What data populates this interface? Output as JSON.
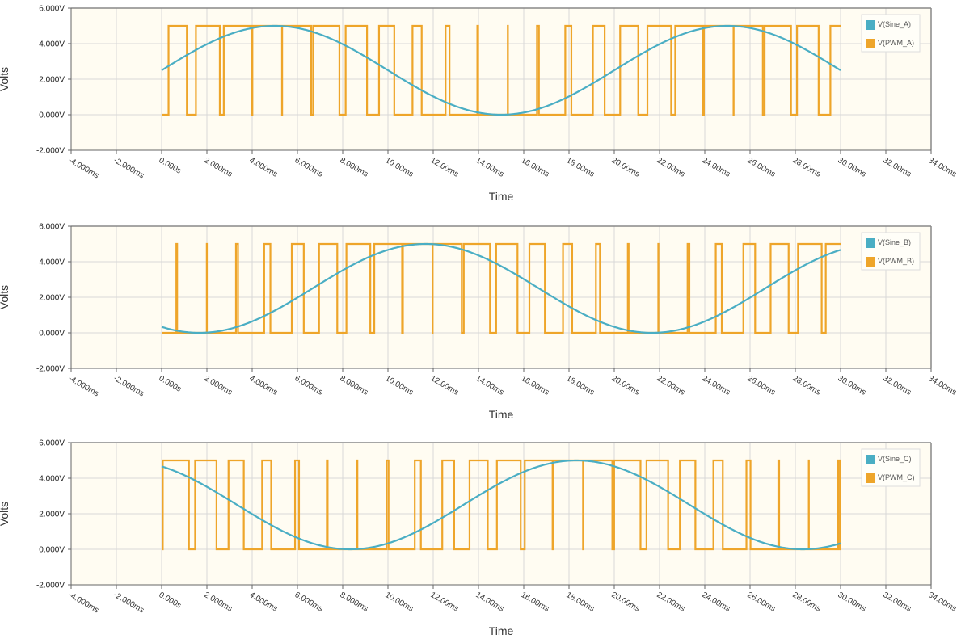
{
  "colors": {
    "sine": "#4aaec4",
    "pwm": "#eea52a",
    "plot_bg": "#fffcf2",
    "grid": "#d8d8d8",
    "axis": "#666666"
  },
  "chart_data": [
    {
      "type": "line",
      "ylabel": "Volts",
      "xlabel": "Time",
      "xlim": [
        -4,
        34
      ],
      "ylim": [
        -2,
        6
      ],
      "x_ticks": [
        "-4.000ms",
        "-2.000ms",
        "0.000s",
        "2.000ms",
        "4.000ms",
        "6.000ms",
        "8.000ms",
        "10.00ms",
        "12.00ms",
        "14.00ms",
        "16.00ms",
        "18.00ms",
        "20.00ms",
        "22.00ms",
        "24.00ms",
        "26.00ms",
        "28.00ms",
        "30.00ms",
        "32.00ms",
        "34.00ms"
      ],
      "y_ticks": [
        "6.000V",
        "4.000V",
        "2.000V",
        "0.000V",
        "-2.000V"
      ],
      "grid": true,
      "legend_position": "top-right",
      "series": [
        {
          "name": "V(Sine_A)",
          "kind": "sine",
          "x_range_ms": [
            0,
            30
          ],
          "offset": 2.5,
          "amplitude": 2.5,
          "period_ms": 20,
          "phase_deg": 0
        },
        {
          "name": "V(PWM_A)",
          "kind": "pwm",
          "x_range_ms": [
            0,
            30
          ],
          "high": 5,
          "low": 0,
          "switching_period_ms": 1.33,
          "reference": "V(Sine_A)"
        }
      ]
    },
    {
      "type": "line",
      "ylabel": "Volts",
      "xlabel": "Time",
      "xlim": [
        -4,
        34
      ],
      "ylim": [
        -2,
        6
      ],
      "x_ticks": [
        "-4.000ms",
        "-2.000ms",
        "0.000s",
        "2.000ms",
        "4.000ms",
        "6.000ms",
        "8.000ms",
        "10.00ms",
        "12.00ms",
        "14.00ms",
        "16.00ms",
        "18.00ms",
        "20.00ms",
        "22.00ms",
        "24.00ms",
        "26.00ms",
        "28.00ms",
        "30.00ms",
        "32.00ms",
        "34.00ms"
      ],
      "y_ticks": [
        "6.000V",
        "4.000V",
        "2.000V",
        "0.000V",
        "-2.000V"
      ],
      "grid": true,
      "legend_position": "top-right",
      "series": [
        {
          "name": "V(Sine_B)",
          "kind": "sine",
          "x_range_ms": [
            0,
            30
          ],
          "offset": 2.5,
          "amplitude": 2.5,
          "period_ms": 20,
          "phase_deg": -120
        },
        {
          "name": "V(PWM_B)",
          "kind": "pwm",
          "x_range_ms": [
            0,
            30
          ],
          "high": 5,
          "low": 0,
          "switching_period_ms": 1.33,
          "reference": "V(Sine_B)"
        }
      ]
    },
    {
      "type": "line",
      "ylabel": "Volts",
      "xlabel": "Time",
      "xlim": [
        -4,
        34
      ],
      "ylim": [
        -2,
        6
      ],
      "x_ticks": [
        "-4.000ms",
        "-2.000ms",
        "0.000s",
        "2.000ms",
        "4.000ms",
        "6.000ms",
        "8.000ms",
        "10.00ms",
        "12.00ms",
        "14.00ms",
        "16.00ms",
        "18.00ms",
        "20.00ms",
        "22.00ms",
        "24.00ms",
        "26.00ms",
        "28.00ms",
        "30.00ms",
        "32.00ms",
        "34.00ms"
      ],
      "y_ticks": [
        "6.000V",
        "4.000V",
        "2.000V",
        "0.000V",
        "-2.000V"
      ],
      "grid": true,
      "legend_position": "top-right",
      "series": [
        {
          "name": "V(Sine_C)",
          "kind": "sine",
          "x_range_ms": [
            0,
            30
          ],
          "offset": 2.5,
          "amplitude": 2.5,
          "period_ms": 20,
          "phase_deg": 120
        },
        {
          "name": "V(PWM_C)",
          "kind": "pwm",
          "x_range_ms": [
            0,
            30
          ],
          "high": 5,
          "low": 0,
          "switching_period_ms": 1.33,
          "reference": "V(Sine_C)"
        }
      ]
    }
  ]
}
